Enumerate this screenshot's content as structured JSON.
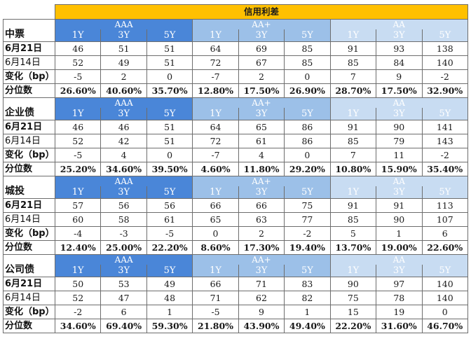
{
  "header": {
    "title": "信用利差"
  },
  "grades": [
    "AAA",
    "AA+",
    "AA"
  ],
  "tenors": [
    "1Y",
    "3Y",
    "5Y"
  ],
  "sections": [
    {
      "name": "中票",
      "rows": [
        {
          "label": "6月21日",
          "values": [
            "46",
            "51",
            "51",
            "64",
            "69",
            "85",
            "91",
            "93",
            "138"
          ]
        },
        {
          "label": "6月14日",
          "values": [
            "52",
            "49",
            "51",
            "72",
            "67",
            "85",
            "85",
            "84",
            "140"
          ]
        },
        {
          "label": "变化（bp）",
          "values": [
            "-5",
            "2",
            "0",
            "-7",
            "2",
            "0",
            "7",
            "9",
            "-2"
          ]
        },
        {
          "label": "分位数",
          "values": [
            "26.60%",
            "40.60%",
            "35.70%",
            "12.80%",
            "17.50%",
            "26.90%",
            "28.70%",
            "17.50%",
            "32.90%"
          ]
        }
      ]
    },
    {
      "name": "企业债",
      "rows": [
        {
          "label": "6月21日",
          "values": [
            "46",
            "46",
            "51",
            "64",
            "65",
            "86",
            "91",
            "90",
            "141"
          ]
        },
        {
          "label": "6月14日",
          "values": [
            "52",
            "42",
            "51",
            "72",
            "61",
            "86",
            "85",
            "79",
            "143"
          ]
        },
        {
          "label": "变化（bp）",
          "values": [
            "-5",
            "4",
            "0",
            "-7",
            "4",
            "0",
            "7",
            "11",
            "-2"
          ]
        },
        {
          "label": "分位数",
          "values": [
            "25.20%",
            "34.60%",
            "39.50%",
            "4.60%",
            "11.80%",
            "29.20%",
            "10.80%",
            "15.90%",
            "35.40%"
          ]
        }
      ]
    },
    {
      "name": "城投",
      "rows": [
        {
          "label": "6月21日",
          "values": [
            "57",
            "56",
            "56",
            "66",
            "66",
            "75",
            "91",
            "91",
            "113"
          ]
        },
        {
          "label": "6月14日",
          "values": [
            "60",
            "58",
            "61",
            "65",
            "63",
            "77",
            "85",
            "90",
            "107"
          ]
        },
        {
          "label": "变化（bp）",
          "values": [
            "-4",
            "-3",
            "-5",
            "0",
            "2",
            "-2",
            "5",
            "1",
            "6"
          ]
        },
        {
          "label": "分位数",
          "values": [
            "12.40%",
            "25.00%",
            "22.20%",
            "8.60%",
            "17.30%",
            "19.40%",
            "13.70%",
            "19.00%",
            "22.60%"
          ]
        }
      ]
    },
    {
      "name": "公司债",
      "rows": [
        {
          "label": "6月21日",
          "values": [
            "50",
            "53",
            "49",
            "66",
            "71",
            "83",
            "90",
            "97",
            "140"
          ]
        },
        {
          "label": "6月14日",
          "values": [
            "52",
            "47",
            "48",
            "71",
            "62",
            "82",
            "75",
            "78",
            "140"
          ]
        },
        {
          "label": "变化（bp）",
          "values": [
            "-2",
            "6",
            "1",
            "-5",
            "9",
            "1",
            "15",
            "19",
            "0"
          ]
        },
        {
          "label": "分位数",
          "values": [
            "34.60%",
            "69.40%",
            "59.30%",
            "21.80%",
            "43.90%",
            "49.40%",
            "22.20%",
            "31.60%",
            "46.70%"
          ]
        }
      ]
    }
  ]
}
